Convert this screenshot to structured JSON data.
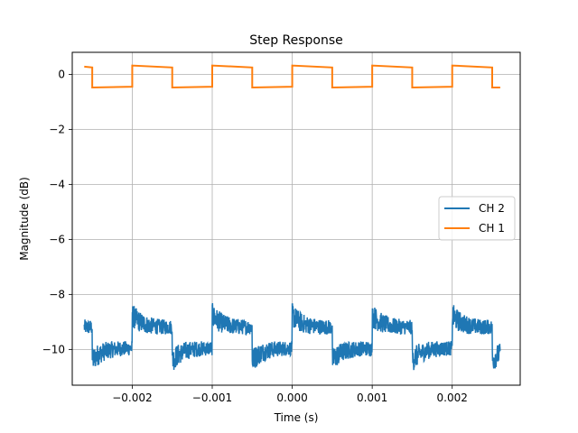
{
  "chart_data": {
    "type": "line",
    "title": "Step Response",
    "xlabel": "Time (s)",
    "ylabel": "Magnitude (dB)",
    "xlim": [
      -0.00275,
      0.00285
    ],
    "ylim": [
      -11.3,
      0.8
    ],
    "xticks": [
      -0.002,
      -0.001,
      0.0,
      0.001,
      0.002
    ],
    "xtick_labels": [
      "−0.002",
      "−0.001",
      "0.000",
      "0.001",
      "0.002"
    ],
    "yticks": [
      0,
      -2,
      -4,
      -6,
      -8,
      -10
    ],
    "ytick_labels": [
      "0",
      "−2",
      "−4",
      "−6",
      "−8",
      "−10"
    ],
    "grid": true,
    "legend_position": "center-right",
    "series": [
      {
        "name": "CH 2",
        "color": "#1f77b4",
        "style": "noisy-square-wave",
        "period": 0.001,
        "x_start": -0.0026,
        "x_end": 0.0026,
        "first_half_starts_at": -0.0025,
        "high_level": -9.2,
        "low_level": -9.95,
        "noise_amplitude": 0.45
      },
      {
        "name": "CH 1",
        "color": "#ff7f0e",
        "style": "square-wave",
        "period": 0.001,
        "x_start": -0.0026,
        "x_end": 0.0026,
        "segments": [
          {
            "x0": -0.0026,
            "x1": -0.0025,
            "y0": 0.28,
            "y1": 0.25
          },
          {
            "x0": -0.0025,
            "x1": -0.002,
            "y0": -0.48,
            "y1": -0.45
          },
          {
            "x0": -0.002,
            "x1": -0.0015,
            "y0": 0.32,
            "y1": 0.25
          },
          {
            "x0": -0.0015,
            "x1": -0.001,
            "y0": -0.48,
            "y1": -0.45
          },
          {
            "x0": -0.001,
            "x1": -0.0005,
            "y0": 0.32,
            "y1": 0.25
          },
          {
            "x0": -0.0005,
            "x1": 0.0,
            "y0": -0.48,
            "y1": -0.45
          },
          {
            "x0": 0.0,
            "x1": 0.0005,
            "y0": 0.32,
            "y1": 0.25
          },
          {
            "x0": 0.0005,
            "x1": 0.001,
            "y0": -0.48,
            "y1": -0.45
          },
          {
            "x0": 0.001,
            "x1": 0.0015,
            "y0": 0.32,
            "y1": 0.25
          },
          {
            "x0": 0.0015,
            "x1": 0.002,
            "y0": -0.48,
            "y1": -0.45
          },
          {
            "x0": 0.002,
            "x1": 0.0025,
            "y0": 0.32,
            "y1": 0.25
          },
          {
            "x0": 0.0025,
            "x1": 0.0026,
            "y0": -0.48,
            "y1": -0.48
          }
        ]
      }
    ]
  }
}
